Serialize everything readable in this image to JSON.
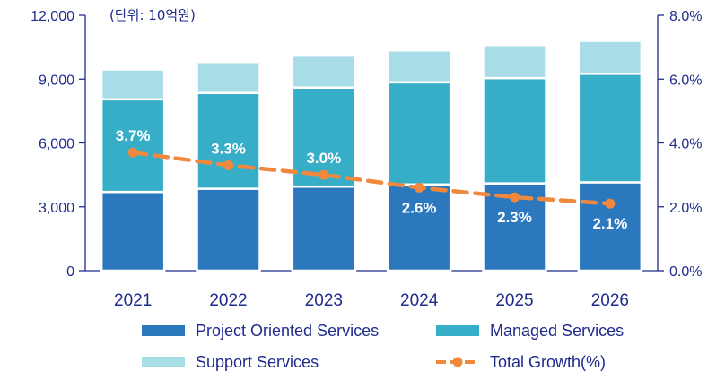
{
  "chart_data": {
    "type": "bar",
    "stacked": true,
    "unit_note": "(단위: 10억원)",
    "categories": [
      "2021",
      "2022",
      "2023",
      "2024",
      "2025",
      "2026"
    ],
    "series": [
      {
        "name": "Project Oriented Services",
        "color": "#2b78bf",
        "values": [
          3700,
          3850,
          3950,
          4050,
          4100,
          4150
        ]
      },
      {
        "name": "Managed Services",
        "color": "#36aec8",
        "values": [
          4350,
          4500,
          4650,
          4800,
          4950,
          5100
        ]
      },
      {
        "name": "Support Services",
        "color": "#a8dce6",
        "values": [
          1400,
          1450,
          1500,
          1500,
          1550,
          1550
        ]
      }
    ],
    "line_series": {
      "name": "Total Growth(%)",
      "color": "#f0883e",
      "values": [
        3.7,
        3.3,
        3.0,
        2.6,
        2.3,
        2.1
      ],
      "labels": [
        "3.7%",
        "3.3%",
        "3.0%",
        "2.6%",
        "2.3%",
        "2.1%"
      ]
    },
    "y_left": {
      "ticks": [
        "0",
        "3,000",
        "6,000",
        "9,000",
        "12,000"
      ],
      "tick_values": [
        0,
        3000,
        6000,
        9000,
        12000
      ],
      "ylim": [
        0,
        12000
      ]
    },
    "y_right": {
      "ticks": [
        "0.0%",
        "2.0%",
        "4.0%",
        "6.0%",
        "8.0%"
      ],
      "tick_values": [
        0,
        2,
        4,
        6,
        8
      ],
      "ylim": [
        0,
        8
      ]
    },
    "axis_color": "#1f2a8c",
    "legend": [
      {
        "label": "Project Oriented Services",
        "kind": "bar",
        "color": "#2b78bf"
      },
      {
        "label": "Managed Services",
        "kind": "bar",
        "color": "#36aec8"
      },
      {
        "label": "Support Services",
        "kind": "bar",
        "color": "#a8dce6"
      },
      {
        "label": "Total Growth(%)",
        "kind": "line",
        "color": "#f0883e"
      }
    ]
  }
}
